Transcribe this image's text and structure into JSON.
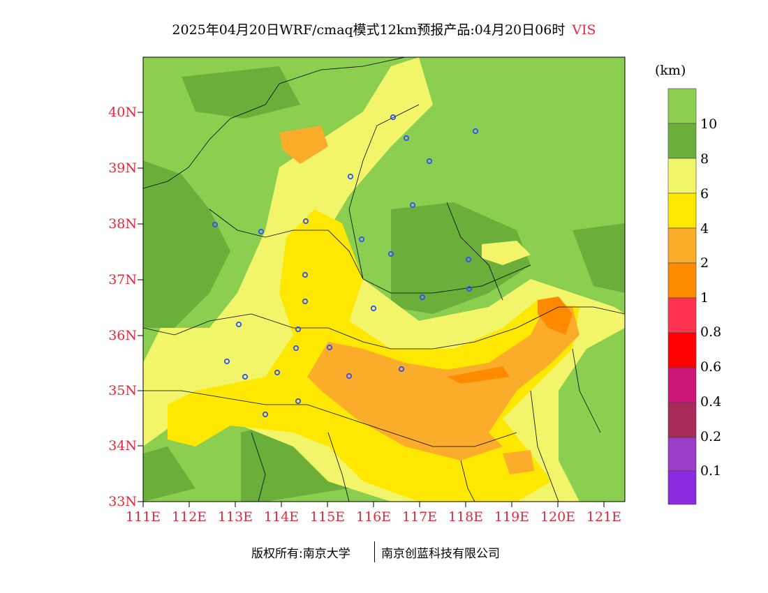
{
  "title": {
    "main": "2025年04月20日WRF/cmaq模式12km预报产品:04月20日06时",
    "variable": "VIS"
  },
  "axes": {
    "lat_labels": [
      "40N",
      "39N",
      "38N",
      "37N",
      "36N",
      "35N",
      "34N",
      "33N"
    ],
    "lon_labels": [
      "111E",
      "112E",
      "113E",
      "114E",
      "115E",
      "116E",
      "117E",
      "118E",
      "119E",
      "120E",
      "121E"
    ]
  },
  "legend": {
    "unit": "(km)",
    "levels": [
      {
        "label": "10",
        "color": "#8ccf50"
      },
      {
        "label": "8",
        "color": "#6aaf3a"
      },
      {
        "label": "6",
        "color": "#f2f56a"
      },
      {
        "label": "4",
        "color": "#ffe800"
      },
      {
        "label": "2",
        "color": "#fbac2a"
      },
      {
        "label": "1",
        "color": "#ff8a00"
      },
      {
        "label": "0.8",
        "color": "#ff3350"
      },
      {
        "label": "0.6",
        "color": "#ff0000"
      },
      {
        "label": "0.4",
        "color": "#cc1577"
      },
      {
        "label": "0.2",
        "color": "#a82a5a"
      },
      {
        "label": "0.1",
        "color": "#9b3dc8"
      },
      {
        "label": "",
        "color": "#8a2be2"
      }
    ],
    "top_color": "#8ccf50"
  },
  "footer": {
    "left": "版权所有:南京大学",
    "right": "南京创蓝科技有限公司"
  }
}
